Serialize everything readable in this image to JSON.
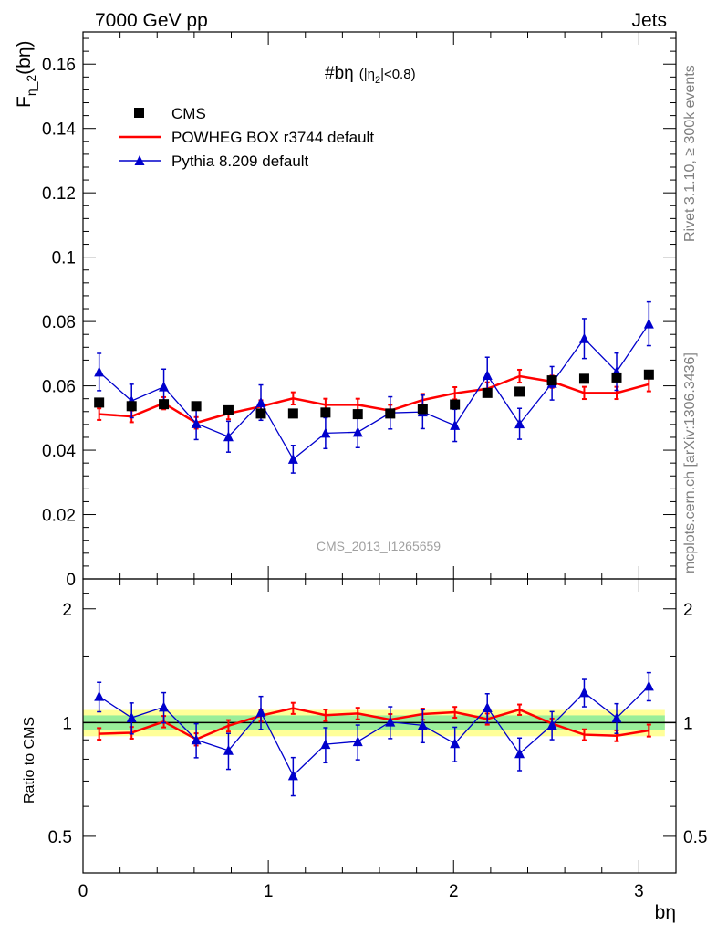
{
  "header": {
    "energy_label": "7000 GeV pp",
    "process_label": "Jets"
  },
  "side": {
    "rivet_label": "Rivet 3.1.10, ≥ 300k events",
    "mcplots_label": "mcplots.cern.ch [arXiv:1306.3436]"
  },
  "watermark": "CMS_2013_I1265659",
  "plot_title": {
    "main": "#bη",
    "cut": "(|η",
    "cut_sub": "2",
    "cut_end": "|<0.8)"
  },
  "axes": {
    "ylabel_main": "F",
    "ylabel_sub": "η_2",
    "ylabel_end": "(bη)",
    "ratio_ylabel": "Ratio to CMS",
    "xlabel": "bη",
    "main_ticks": [
      "0",
      "0.02",
      "0.04",
      "0.06",
      "0.08",
      "0.1",
      "0.12",
      "0.14",
      "0.16"
    ],
    "ratio_ticks": [
      "0.5",
      "1",
      "2"
    ],
    "x_ticks": [
      "0",
      "1",
      "2",
      "3"
    ]
  },
  "legend": {
    "cms": "CMS",
    "powheg": "POWHEG BOX r3744 default",
    "pythia": "Pythia 8.209 default"
  },
  "colors": {
    "data": "#000000",
    "powheg": "#ff0000",
    "pythia": "#0000cc",
    "band_inner": "#99ee99",
    "band_outer": "#ffff99"
  },
  "chart_data": {
    "type": "line",
    "x_range": [
      0,
      3.2
    ],
    "main_ylim": [
      0,
      0.17
    ],
    "ratio_ylim": [
      0.4,
      2.4
    ],
    "ratio_scale": "log",
    "x": [
      0.087,
      0.262,
      0.436,
      0.611,
      0.785,
      0.96,
      1.134,
      1.309,
      1.483,
      1.658,
      1.833,
      2.007,
      2.182,
      2.356,
      2.531,
      2.705,
      2.88,
      3.054
    ],
    "series": [
      {
        "name": "CMS",
        "values": [
          0.0548,
          0.0537,
          0.0543,
          0.0537,
          0.0524,
          0.0514,
          0.0514,
          0.0517,
          0.0512,
          0.0514,
          0.0528,
          0.0542,
          0.0578,
          0.0582,
          0.0617,
          0.0622,
          0.0626,
          0.0635
        ]
      },
      {
        "name": "POWHEG BOX r3744 default",
        "values": [
          0.0512,
          0.0505,
          0.0546,
          0.0485,
          0.0514,
          0.0536,
          0.0561,
          0.0541,
          0.0541,
          0.0523,
          0.0556,
          0.0577,
          0.0591,
          0.063,
          0.0613,
          0.0578,
          0.0578,
          0.0605
        ],
        "errors": [
          0.0018,
          0.0018,
          0.0019,
          0.0018,
          0.0018,
          0.0019,
          0.0019,
          0.0019,
          0.0019,
          0.0018,
          0.0019,
          0.0019,
          0.002,
          0.002,
          0.0019,
          0.0019,
          0.0019,
          0.0022
        ],
        "ratio": [
          0.934,
          0.94,
          1.006,
          0.903,
          0.981,
          1.043,
          1.091,
          1.046,
          1.057,
          1.018,
          1.053,
          1.065,
          1.022,
          1.082,
          0.994,
          0.929,
          0.923,
          0.953
        ]
      },
      {
        "name": "Pythia 8.209 default",
        "values": [
          0.0643,
          0.0553,
          0.0597,
          0.0483,
          0.0442,
          0.0548,
          0.0372,
          0.0453,
          0.0456,
          0.0516,
          0.0519,
          0.0477,
          0.0633,
          0.0482,
          0.0608,
          0.0747,
          0.0644,
          0.0793
        ],
        "errors": [
          0.0058,
          0.0052,
          0.0055,
          0.005,
          0.0048,
          0.0055,
          0.0043,
          0.0048,
          0.0048,
          0.005,
          0.0052,
          0.005,
          0.0056,
          0.0048,
          0.0052,
          0.0062,
          0.0058,
          0.0068
        ],
        "ratio": [
          1.173,
          1.03,
          1.099,
          0.9,
          0.844,
          1.066,
          0.724,
          0.876,
          0.891,
          1.004,
          0.983,
          0.88,
          1.095,
          0.828,
          0.985,
          1.201,
          1.029,
          1.249
        ],
        "ratio_errors": [
          0.105,
          0.097,
          0.101,
          0.093,
          0.092,
          0.107,
          0.084,
          0.093,
          0.094,
          0.097,
          0.098,
          0.092,
          0.097,
          0.082,
          0.084,
          0.1,
          0.093,
          0.107
        ]
      }
    ],
    "ratio_band": {
      "inner": [
        0.955,
        1.045
      ],
      "outer": [
        0.92,
        1.08
      ]
    }
  }
}
